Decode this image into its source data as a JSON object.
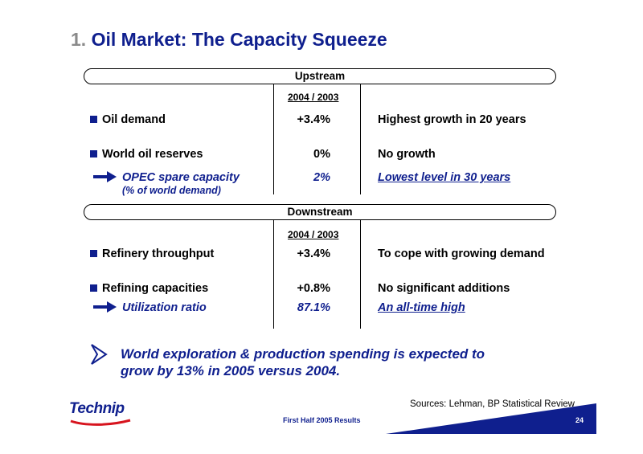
{
  "slide": {
    "title_number": "1.",
    "title_text": "Oil Market: The Capacity Squeeze"
  },
  "upstream": {
    "band_label": "Upstream",
    "column_header": "2004 / 2003",
    "rows": [
      {
        "label": "Oil demand",
        "value": "+3.4%",
        "comment": "Highest growth in 20 years"
      },
      {
        "label": "World oil reserves",
        "value": "0%",
        "comment": "No growth"
      }
    ],
    "highlight": {
      "label": "OPEC spare capacity",
      "sublabel": "(% of world demand)",
      "value": "2%",
      "comment": "Lowest level in 30 years"
    }
  },
  "downstream": {
    "band_label": "Downstream",
    "column_header": "2004 / 2003",
    "rows": [
      {
        "label": "Refinery throughput",
        "value": "+3.4%",
        "comment": "To cope with growing demand"
      },
      {
        "label": "Refining capacities",
        "value": "+0.8%",
        "comment": "No significant additions"
      }
    ],
    "highlight": {
      "label": "Utilization ratio",
      "value": "87.1%",
      "comment": "An all-time high"
    }
  },
  "conclusion": {
    "line1": "World exploration & production spending is expected to",
    "line2": "grow by 13% in 2005 versus 2004."
  },
  "footer": {
    "logo_text": "Technip",
    "sources": "Sources: Lehman, BP Statistical Review",
    "center_text": "First Half 2005 Results",
    "page_number": "24"
  },
  "colors": {
    "brand_blue": "#0f1f8e",
    "logo_red": "#d7141e",
    "title_number_gray": "#8a8a8a"
  },
  "icons": [
    "square-bullet-icon",
    "arrow-right-icon",
    "chevron-right-icon"
  ]
}
